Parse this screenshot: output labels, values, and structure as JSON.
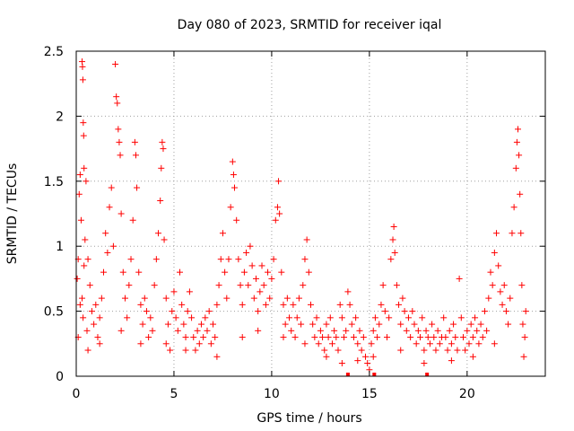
{
  "chart_data": {
    "type": "scatter",
    "title": "Day 080 of 2023, SRMTID for receiver iqal",
    "xlabel": "GPS time / hours",
    "ylabel": "SRMTID / TECUs",
    "xlim": [
      0,
      24
    ],
    "ylim": [
      0,
      2.5
    ],
    "x_ticks": [
      0,
      5,
      10,
      15,
      20
    ],
    "x_tick_labels": [
      "0",
      "5",
      "10",
      "15",
      "20"
    ],
    "y_ticks": [
      0,
      0.5,
      1,
      1.5,
      2,
      2.5
    ],
    "y_tick_labels": [
      "0",
      "0.5",
      "1",
      "1.5",
      "2",
      "2.5"
    ],
    "grid": true,
    "marker": "plus",
    "color": "#ff0000",
    "marker_color": "#ff0000",
    "series": [
      {
        "name": "SRMTID",
        "points": [
          [
            0.05,
            0.75
          ],
          [
            0.1,
            0.9
          ],
          [
            0.15,
            1.4
          ],
          [
            0.2,
            1.55
          ],
          [
            0.25,
            1.2
          ],
          [
            0.3,
            0.6
          ],
          [
            0.35,
            0.45
          ],
          [
            0.4,
            0.85
          ],
          [
            0.45,
            1.05
          ],
          [
            0.5,
            1.5
          ],
          [
            0.55,
            0.35
          ],
          [
            0.1,
            0.3
          ],
          [
            0.2,
            0.55
          ],
          [
            0.3,
            2.42
          ],
          [
            0.32,
            2.38
          ],
          [
            0.34,
            2.28
          ],
          [
            0.36,
            1.95
          ],
          [
            0.38,
            1.85
          ],
          [
            0.4,
            1.6
          ],
          [
            0.6,
            0.9
          ],
          [
            0.7,
            0.7
          ],
          [
            0.8,
            0.5
          ],
          [
            0.9,
            0.4
          ],
          [
            1.0,
            0.55
          ],
          [
            1.1,
            0.3
          ],
          [
            1.2,
            0.45
          ],
          [
            1.3,
            0.6
          ],
          [
            1.4,
            0.8
          ],
          [
            1.5,
            1.1
          ],
          [
            1.6,
            0.95
          ],
          [
            1.7,
            1.3
          ],
          [
            1.8,
            1.45
          ],
          [
            1.9,
            1.0
          ],
          [
            2.0,
            2.4
          ],
          [
            2.05,
            2.15
          ],
          [
            2.1,
            2.1
          ],
          [
            2.15,
            1.9
          ],
          [
            2.2,
            1.8
          ],
          [
            2.25,
            1.7
          ],
          [
            2.3,
            1.25
          ],
          [
            2.4,
            0.8
          ],
          [
            2.5,
            0.6
          ],
          [
            2.6,
            0.45
          ],
          [
            2.7,
            0.7
          ],
          [
            2.8,
            0.9
          ],
          [
            2.9,
            1.2
          ],
          [
            3.0,
            1.8
          ],
          [
            3.05,
            1.7
          ],
          [
            3.1,
            1.45
          ],
          [
            3.2,
            0.8
          ],
          [
            3.3,
            0.55
          ],
          [
            3.4,
            0.4
          ],
          [
            3.5,
            0.6
          ],
          [
            3.6,
            0.5
          ],
          [
            3.7,
            0.3
          ],
          [
            3.8,
            0.45
          ],
          [
            3.9,
            0.35
          ],
          [
            4.0,
            0.7
          ],
          [
            4.1,
            0.9
          ],
          [
            4.2,
            1.1
          ],
          [
            4.3,
            1.35
          ],
          [
            4.35,
            1.6
          ],
          [
            4.4,
            1.8
          ],
          [
            4.45,
            1.75
          ],
          [
            4.5,
            1.05
          ],
          [
            4.6,
            0.6
          ],
          [
            4.7,
            0.4
          ],
          [
            4.8,
            0.2
          ],
          [
            4.9,
            0.5
          ],
          [
            5.0,
            0.65
          ],
          [
            5.1,
            0.45
          ],
          [
            5.2,
            0.35
          ],
          [
            5.3,
            0.8
          ],
          [
            5.4,
            0.55
          ],
          [
            5.5,
            0.4
          ],
          [
            5.6,
            0.3
          ],
          [
            5.7,
            0.5
          ],
          [
            5.8,
            0.65
          ],
          [
            5.9,
            0.45
          ],
          [
            6.0,
            0.3
          ],
          [
            6.1,
            0.2
          ],
          [
            6.2,
            0.35
          ],
          [
            6.3,
            0.25
          ],
          [
            6.4,
            0.4
          ],
          [
            6.5,
            0.3
          ],
          [
            6.6,
            0.45
          ],
          [
            6.7,
            0.35
          ],
          [
            6.8,
            0.5
          ],
          [
            6.9,
            0.25
          ],
          [
            7.0,
            0.4
          ],
          [
            7.1,
            0.3
          ],
          [
            7.2,
            0.55
          ],
          [
            7.3,
            0.7
          ],
          [
            7.4,
            0.9
          ],
          [
            7.5,
            1.1
          ],
          [
            7.6,
            0.8
          ],
          [
            7.7,
            0.6
          ],
          [
            7.8,
            0.9
          ],
          [
            7.9,
            1.3
          ],
          [
            8.0,
            1.65
          ],
          [
            8.05,
            1.55
          ],
          [
            8.1,
            1.45
          ],
          [
            8.2,
            1.2
          ],
          [
            8.3,
            0.9
          ],
          [
            8.4,
            0.7
          ],
          [
            8.5,
            0.55
          ],
          [
            8.6,
            0.8
          ],
          [
            8.7,
            0.95
          ],
          [
            8.8,
            0.7
          ],
          [
            8.9,
            1.0
          ],
          [
            9.0,
            0.85
          ],
          [
            9.1,
            0.6
          ],
          [
            9.2,
            0.75
          ],
          [
            9.3,
            0.5
          ],
          [
            9.4,
            0.65
          ],
          [
            9.5,
            0.85
          ],
          [
            9.6,
            0.7
          ],
          [
            9.7,
            0.55
          ],
          [
            9.8,
            0.8
          ],
          [
            9.9,
            0.6
          ],
          [
            10.0,
            0.75
          ],
          [
            10.1,
            0.9
          ],
          [
            10.2,
            1.2
          ],
          [
            10.3,
            1.3
          ],
          [
            10.35,
            1.5
          ],
          [
            10.4,
            1.25
          ],
          [
            10.5,
            0.8
          ],
          [
            10.6,
            0.55
          ],
          [
            10.7,
            0.4
          ],
          [
            10.8,
            0.6
          ],
          [
            10.9,
            0.45
          ],
          [
            11.0,
            0.35
          ],
          [
            11.1,
            0.55
          ],
          [
            11.2,
            0.3
          ],
          [
            11.3,
            0.45
          ],
          [
            11.4,
            0.6
          ],
          [
            11.5,
            0.4
          ],
          [
            11.6,
            0.7
          ],
          [
            11.7,
            0.9
          ],
          [
            11.8,
            1.05
          ],
          [
            11.9,
            0.8
          ],
          [
            12.0,
            0.55
          ],
          [
            12.1,
            0.4
          ],
          [
            12.2,
            0.3
          ],
          [
            12.3,
            0.45
          ],
          [
            12.4,
            0.25
          ],
          [
            12.5,
            0.35
          ],
          [
            12.6,
            0.3
          ],
          [
            12.7,
            0.2
          ],
          [
            12.8,
            0.4
          ],
          [
            12.9,
            0.3
          ],
          [
            13.0,
            0.45
          ],
          [
            13.1,
            0.25
          ],
          [
            13.2,
            0.35
          ],
          [
            13.3,
            0.3
          ],
          [
            13.4,
            0.2
          ],
          [
            13.5,
            0.55
          ],
          [
            13.6,
            0.45
          ],
          [
            13.7,
            0.3
          ],
          [
            13.8,
            0.35
          ],
          [
            13.9,
            0.65
          ],
          [
            14.0,
            0.55
          ],
          [
            14.1,
            0.4
          ],
          [
            14.2,
            0.3
          ],
          [
            14.3,
            0.45
          ],
          [
            14.4,
            0.25
          ],
          [
            14.5,
            0.35
          ],
          [
            14.6,
            0.2
          ],
          [
            14.7,
            0.3
          ],
          [
            14.8,
            0.15
          ],
          [
            14.9,
            0.1
          ],
          [
            15.0,
            0.05
          ],
          [
            15.1,
            0.25
          ],
          [
            15.2,
            0.35
          ],
          [
            15.3,
            0.45
          ],
          [
            15.4,
            0.3
          ],
          [
            15.5,
            0.4
          ],
          [
            15.6,
            0.55
          ],
          [
            15.7,
            0.7
          ],
          [
            15.8,
            0.5
          ],
          [
            15.9,
            0.3
          ],
          [
            16.0,
            0.45
          ],
          [
            16.1,
            0.9
          ],
          [
            16.2,
            1.05
          ],
          [
            16.25,
            1.15
          ],
          [
            16.3,
            0.95
          ],
          [
            16.4,
            0.7
          ],
          [
            16.5,
            0.55
          ],
          [
            16.6,
            0.4
          ],
          [
            16.7,
            0.6
          ],
          [
            16.8,
            0.5
          ],
          [
            16.9,
            0.35
          ],
          [
            17.0,
            0.45
          ],
          [
            17.1,
            0.3
          ],
          [
            17.2,
            0.5
          ],
          [
            17.3,
            0.4
          ],
          [
            17.4,
            0.25
          ],
          [
            17.5,
            0.35
          ],
          [
            17.6,
            0.3
          ],
          [
            17.7,
            0.45
          ],
          [
            17.8,
            0.2
          ],
          [
            17.9,
            0.35
          ],
          [
            18.0,
            0.3
          ],
          [
            18.1,
            0.25
          ],
          [
            18.2,
            0.4
          ],
          [
            18.3,
            0.3
          ],
          [
            18.4,
            0.2
          ],
          [
            18.5,
            0.35
          ],
          [
            18.6,
            0.25
          ],
          [
            18.7,
            0.3
          ],
          [
            18.8,
            0.45
          ],
          [
            18.9,
            0.3
          ],
          [
            19.0,
            0.2
          ],
          [
            19.1,
            0.35
          ],
          [
            19.2,
            0.25
          ],
          [
            19.3,
            0.4
          ],
          [
            19.4,
            0.3
          ],
          [
            19.5,
            0.2
          ],
          [
            19.6,
            0.75
          ],
          [
            19.7,
            0.45
          ],
          [
            19.8,
            0.3
          ],
          [
            19.9,
            0.2
          ],
          [
            20.0,
            0.35
          ],
          [
            20.1,
            0.25
          ],
          [
            20.2,
            0.4
          ],
          [
            20.3,
            0.3
          ],
          [
            20.4,
            0.45
          ],
          [
            20.5,
            0.35
          ],
          [
            20.6,
            0.25
          ],
          [
            20.7,
            0.4
          ],
          [
            20.8,
            0.3
          ],
          [
            20.9,
            0.5
          ],
          [
            21.0,
            0.35
          ],
          [
            21.1,
            0.6
          ],
          [
            21.2,
            0.8
          ],
          [
            21.3,
            0.7
          ],
          [
            21.4,
            0.95
          ],
          [
            21.5,
            1.1
          ],
          [
            21.6,
            0.85
          ],
          [
            21.7,
            0.65
          ],
          [
            21.8,
            0.55
          ],
          [
            21.9,
            0.7
          ],
          [
            22.0,
            0.5
          ],
          [
            22.1,
            0.4
          ],
          [
            22.2,
            0.6
          ],
          [
            22.3,
            1.1
          ],
          [
            22.4,
            1.3
          ],
          [
            22.5,
            1.6
          ],
          [
            22.55,
            1.8
          ],
          [
            22.6,
            1.9
          ],
          [
            22.65,
            1.7
          ],
          [
            22.7,
            1.4
          ],
          [
            22.75,
            1.1
          ],
          [
            22.8,
            0.7
          ],
          [
            22.85,
            0.4
          ],
          [
            22.9,
            0.15
          ],
          [
            22.95,
            0.3
          ],
          [
            23.0,
            0.5
          ],
          [
            0.6,
            0.2
          ],
          [
            1.2,
            0.25
          ],
          [
            2.3,
            0.35
          ],
          [
            3.3,
            0.25
          ],
          [
            4.6,
            0.25
          ],
          [
            5.6,
            0.2
          ],
          [
            7.2,
            0.15
          ],
          [
            8.5,
            0.3
          ],
          [
            9.3,
            0.35
          ],
          [
            10.6,
            0.3
          ],
          [
            11.7,
            0.25
          ],
          [
            12.8,
            0.15
          ],
          [
            13.6,
            0.1
          ],
          [
            14.4,
            0.12
          ],
          [
            15.2,
            0.15
          ],
          [
            16.6,
            0.2
          ],
          [
            17.8,
            0.1
          ],
          [
            19.2,
            0.12
          ],
          [
            20.3,
            0.15
          ],
          [
            21.4,
            0.25
          ]
        ]
      }
    ],
    "zero_markers_x": [
      13.9,
      15.25,
      17.95
    ]
  }
}
